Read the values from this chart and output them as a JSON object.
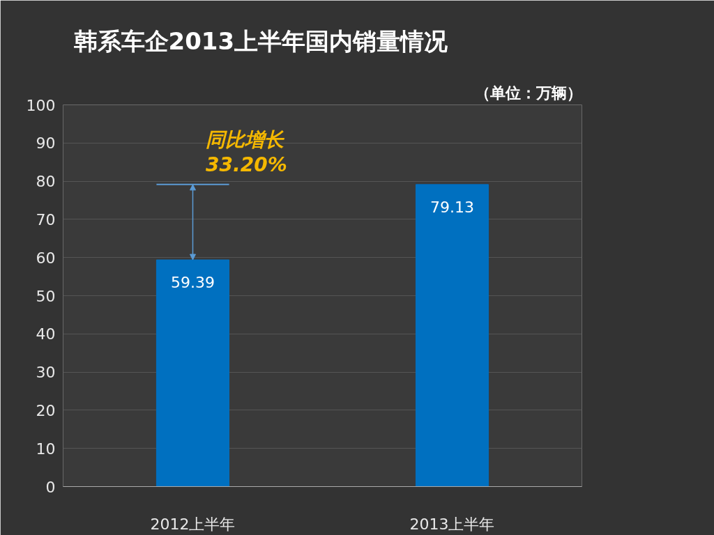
{
  "chart_data": {
    "type": "bar",
    "title": "韩系车企2013上半年国内销量情况",
    "categories": [
      "2012上半年",
      "2013上半年"
    ],
    "values": [
      59.39,
      79.13
    ],
    "color": "#0070c0",
    "ylim": [
      0,
      100
    ],
    "yticks": [
      0,
      10,
      20,
      30,
      40,
      50,
      60,
      70,
      80,
      90,
      100
    ],
    "grid": "y",
    "data_labels": true,
    "annotations": [
      "同比增长\n33.20%",
      "（单位：万辆）"
    ]
  }
}
